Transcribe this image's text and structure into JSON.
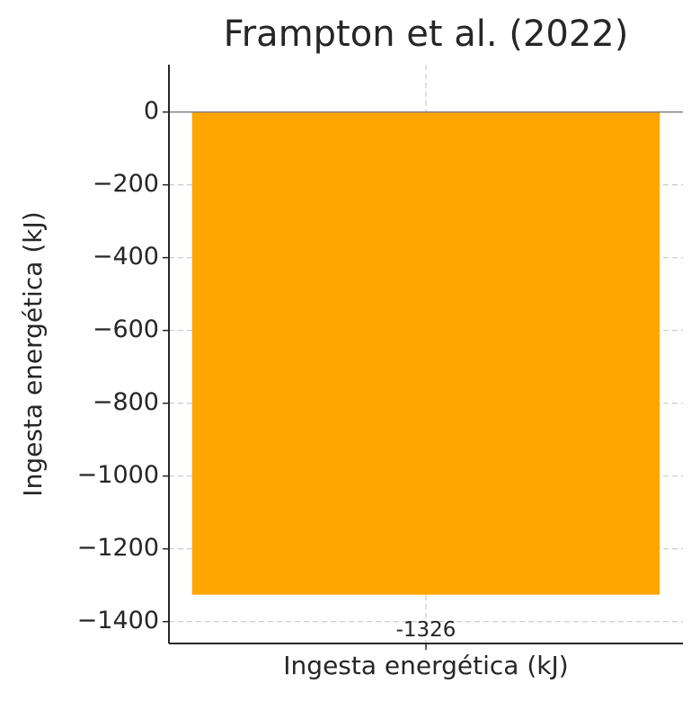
{
  "chart_data": {
    "type": "bar",
    "title": "Frampton et al. (2022)",
    "xlabel": "Ingesta energética (kJ)",
    "ylabel": "Ingesta energética (kJ)",
    "categories": [
      null
    ],
    "values": [
      -1326
    ],
    "color": "#ffa500",
    "ylim": [
      -1460,
      130
    ],
    "yticks": [
      0,
      {
        "value": -200,
        "label": "−200"
      },
      {
        "value": -400,
        "label": "−400"
      },
      {
        "value": -600,
        "label": "−600"
      },
      {
        "value": -800,
        "label": "−800"
      },
      {
        "value": -1000,
        "label": "−1000"
      },
      {
        "value": -1200,
        "label": "−1200"
      },
      {
        "value": -1400,
        "label": "−1400"
      }
    ],
    "grid": true
  }
}
